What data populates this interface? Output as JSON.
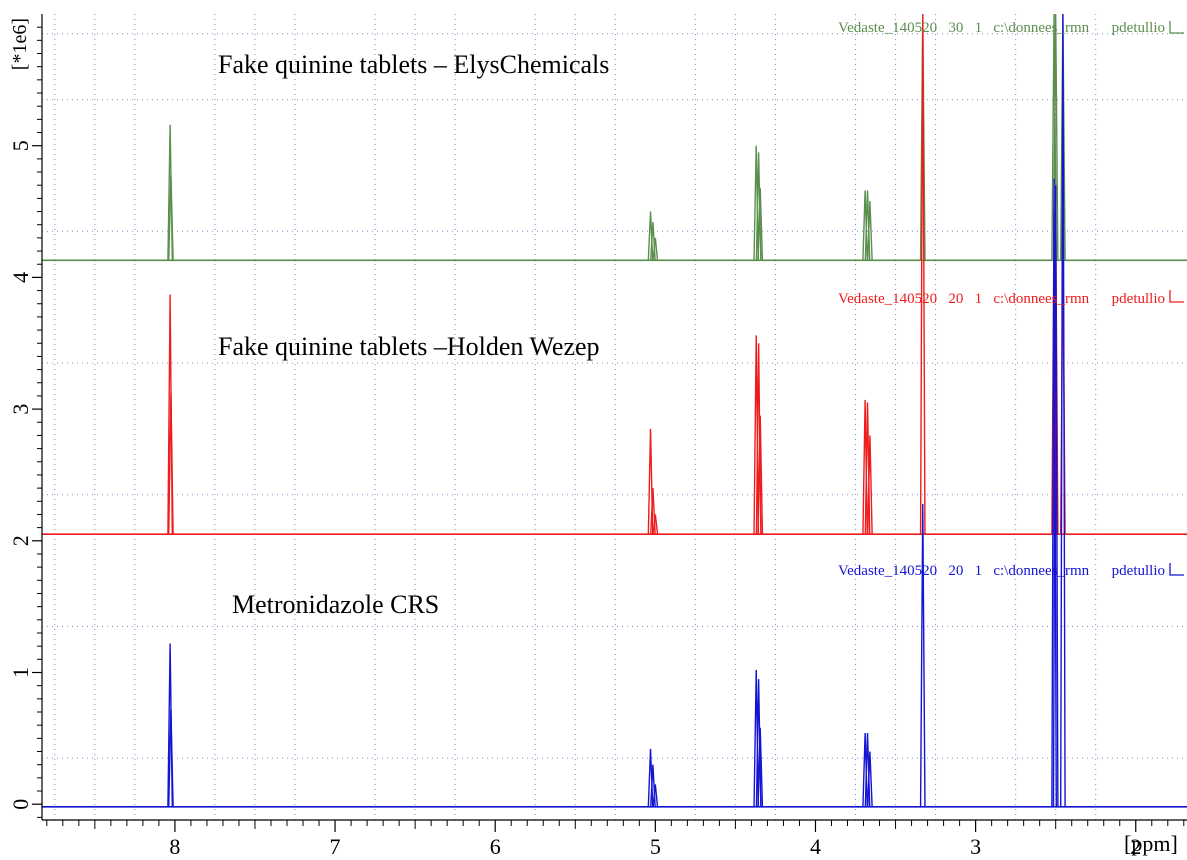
{
  "chart_data": {
    "type": "line",
    "x_unit_label": "[ppm]",
    "y_scale_label": "[*1e6]",
    "xlim": [
      8.83,
      1.68
    ],
    "ylim": [
      -0.12,
      6.0
    ],
    "x_ticks": [
      8,
      7,
      6,
      5,
      4,
      3,
      2
    ],
    "y_ticks": [
      0,
      1,
      2,
      3,
      4,
      5
    ],
    "grid": "dotted",
    "series": [
      {
        "color": "#5b8f4e",
        "baseline": 4.13,
        "spectrum_label": "Vedaste_140520   30   1   c:\\donnees_rmn      pdetullio",
        "annotation": "Fake quinine tablets – ElysChemicals",
        "peaks": [
          {
            "x": 8.03,
            "y": 5.16
          },
          {
            "x": 8.025,
            "y": 4.78
          },
          {
            "x": 5.03,
            "y": 4.5
          },
          {
            "x": 5.015,
            "y": 4.42
          },
          {
            "x": 5.0,
            "y": 4.3
          },
          {
            "x": 4.37,
            "y": 5.0
          },
          {
            "x": 4.355,
            "y": 4.95
          },
          {
            "x": 4.345,
            "y": 4.68
          },
          {
            "x": 3.69,
            "y": 4.66
          },
          {
            "x": 3.675,
            "y": 4.66
          },
          {
            "x": 3.66,
            "y": 4.58
          },
          {
            "x": 3.33,
            "y": 6.0
          },
          {
            "x": 2.51,
            "y": 6.0
          },
          {
            "x": 2.5,
            "y": 6.0
          },
          {
            "x": 2.455,
            "y": 6.0
          }
        ]
      },
      {
        "color": "#ee1c1c",
        "baseline": 2.05,
        "spectrum_label": "Vedaste_140520   20   1   c:\\donnees_rmn      pdetullio",
        "annotation": "Fake quinine tablets –Holden Wezep",
        "peaks": [
          {
            "x": 8.03,
            "y": 3.87
          },
          {
            "x": 8.025,
            "y": 3.12
          },
          {
            "x": 5.03,
            "y": 2.85
          },
          {
            "x": 5.015,
            "y": 2.4
          },
          {
            "x": 5.0,
            "y": 2.2
          },
          {
            "x": 4.37,
            "y": 3.56
          },
          {
            "x": 4.355,
            "y": 3.5
          },
          {
            "x": 4.345,
            "y": 2.95
          },
          {
            "x": 3.69,
            "y": 3.07
          },
          {
            "x": 3.675,
            "y": 3.05
          },
          {
            "x": 3.66,
            "y": 2.8
          },
          {
            "x": 3.33,
            "y": 6.0
          },
          {
            "x": 2.51,
            "y": 4.5
          },
          {
            "x": 2.5,
            "y": 4.45
          },
          {
            "x": 2.455,
            "y": 4.2
          }
        ]
      },
      {
        "color": "#1414d2",
        "baseline": -0.02,
        "spectrum_label": "Vedaste_140520   20   1   c:\\donnees_rmn      pdetullio",
        "annotation": "Metronidazole CRS",
        "peaks": [
          {
            "x": 8.03,
            "y": 1.22
          },
          {
            "x": 8.025,
            "y": 0.72
          },
          {
            "x": 5.03,
            "y": 0.42
          },
          {
            "x": 5.015,
            "y": 0.3
          },
          {
            "x": 5.0,
            "y": 0.15
          },
          {
            "x": 4.37,
            "y": 1.02
          },
          {
            "x": 4.355,
            "y": 0.95
          },
          {
            "x": 4.345,
            "y": 0.58
          },
          {
            "x": 3.69,
            "y": 0.54
          },
          {
            "x": 3.675,
            "y": 0.54
          },
          {
            "x": 3.66,
            "y": 0.4
          },
          {
            "x": 3.33,
            "y": 2.28
          },
          {
            "x": 2.51,
            "y": 4.75
          },
          {
            "x": 2.5,
            "y": 4.7
          },
          {
            "x": 2.455,
            "y": 6.0
          }
        ]
      }
    ]
  }
}
